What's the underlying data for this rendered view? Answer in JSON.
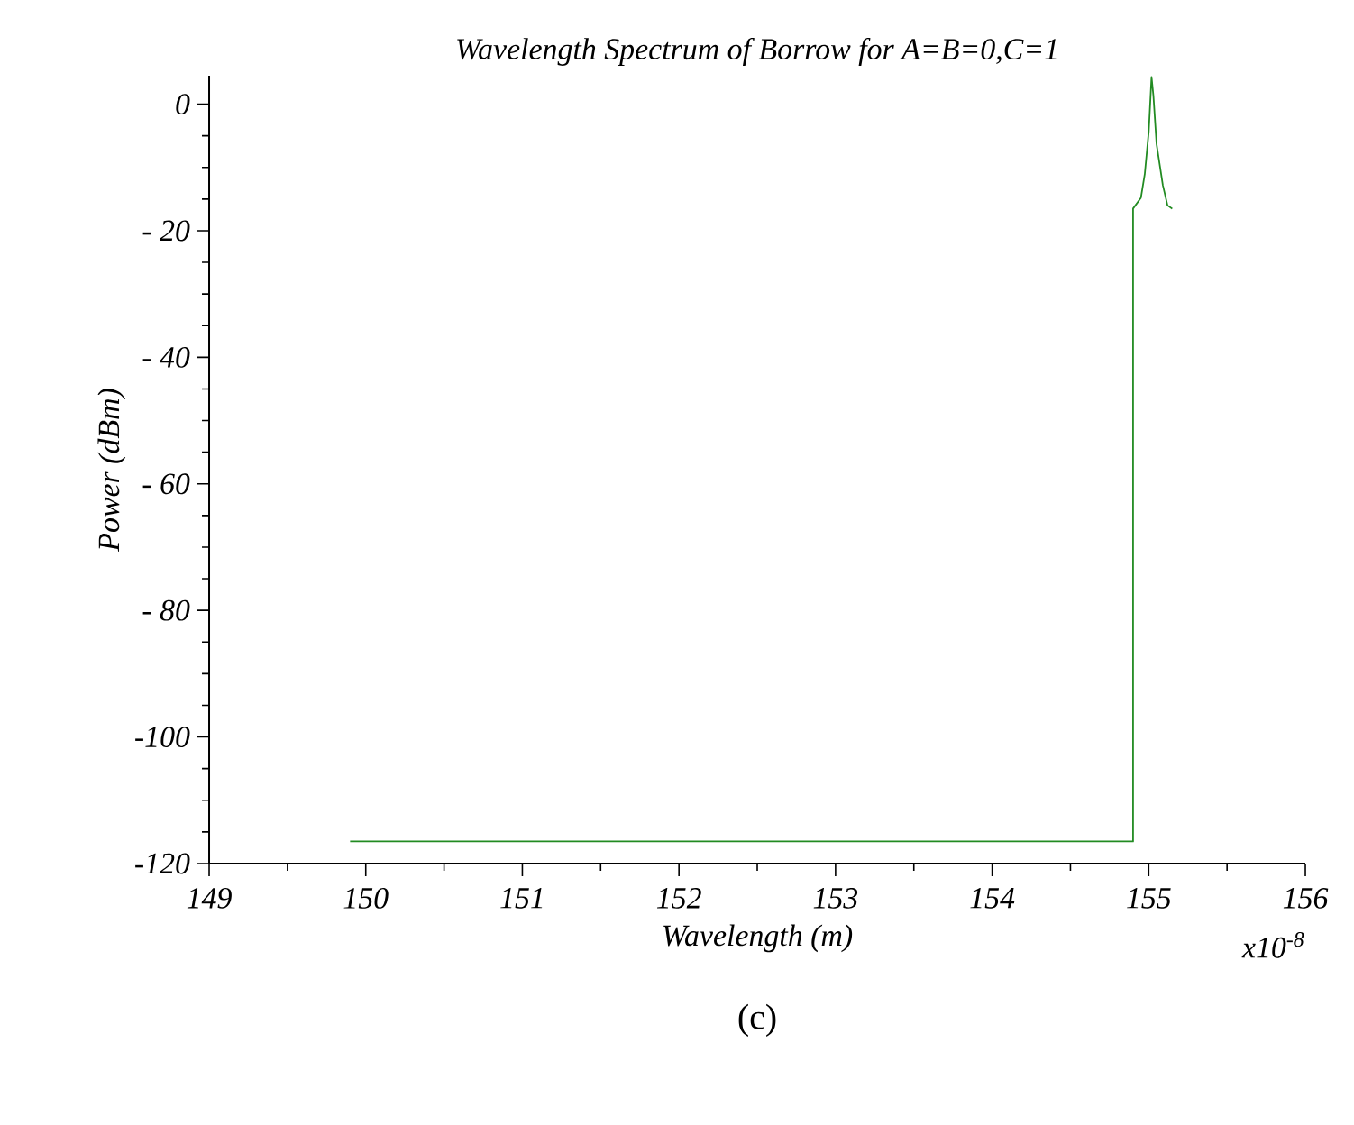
{
  "chart_data": {
    "type": "line",
    "title": "Wavelength Spectrum of Borrow for A=B=0,C=1",
    "xlabel": "Wavelength (m)",
    "ylabel": "Power (dBm)",
    "annotations": [
      "x10$^{-8}$",
      "(c)"
    ],
    "series": [
      {
        "color": "#228b22",
        "x": [
          149.9,
          154.9,
          154.9,
          154.95,
          154.975,
          155.0,
          155.018,
          155.03,
          155.05,
          155.09,
          155.12,
          155.15
        ],
        "values": [
          -116.5,
          -116.5,
          -16.5,
          -14.8,
          -11.0,
          -4.4,
          4.3,
          1.3,
          -6.3,
          -12.8,
          -16.0,
          -16.5
        ]
      }
    ],
    "xlim": [
      149,
      156
    ],
    "ylim": [
      -120,
      4.5
    ],
    "xticks": [
      149,
      150,
      151,
      152,
      153,
      154,
      155,
      156
    ],
    "yticks": [
      {
        "value": -120,
        "label": "-120"
      },
      {
        "value": -100,
        "label": "-100"
      },
      {
        "value": -80,
        "label": "- 80"
      },
      {
        "value": -60,
        "label": "- 60"
      },
      {
        "value": -40,
        "label": "- 40"
      },
      {
        "value": -20,
        "label": "- 20"
      },
      0
    ],
    "grid": false,
    "marker": "none",
    "line_style": "solid"
  }
}
